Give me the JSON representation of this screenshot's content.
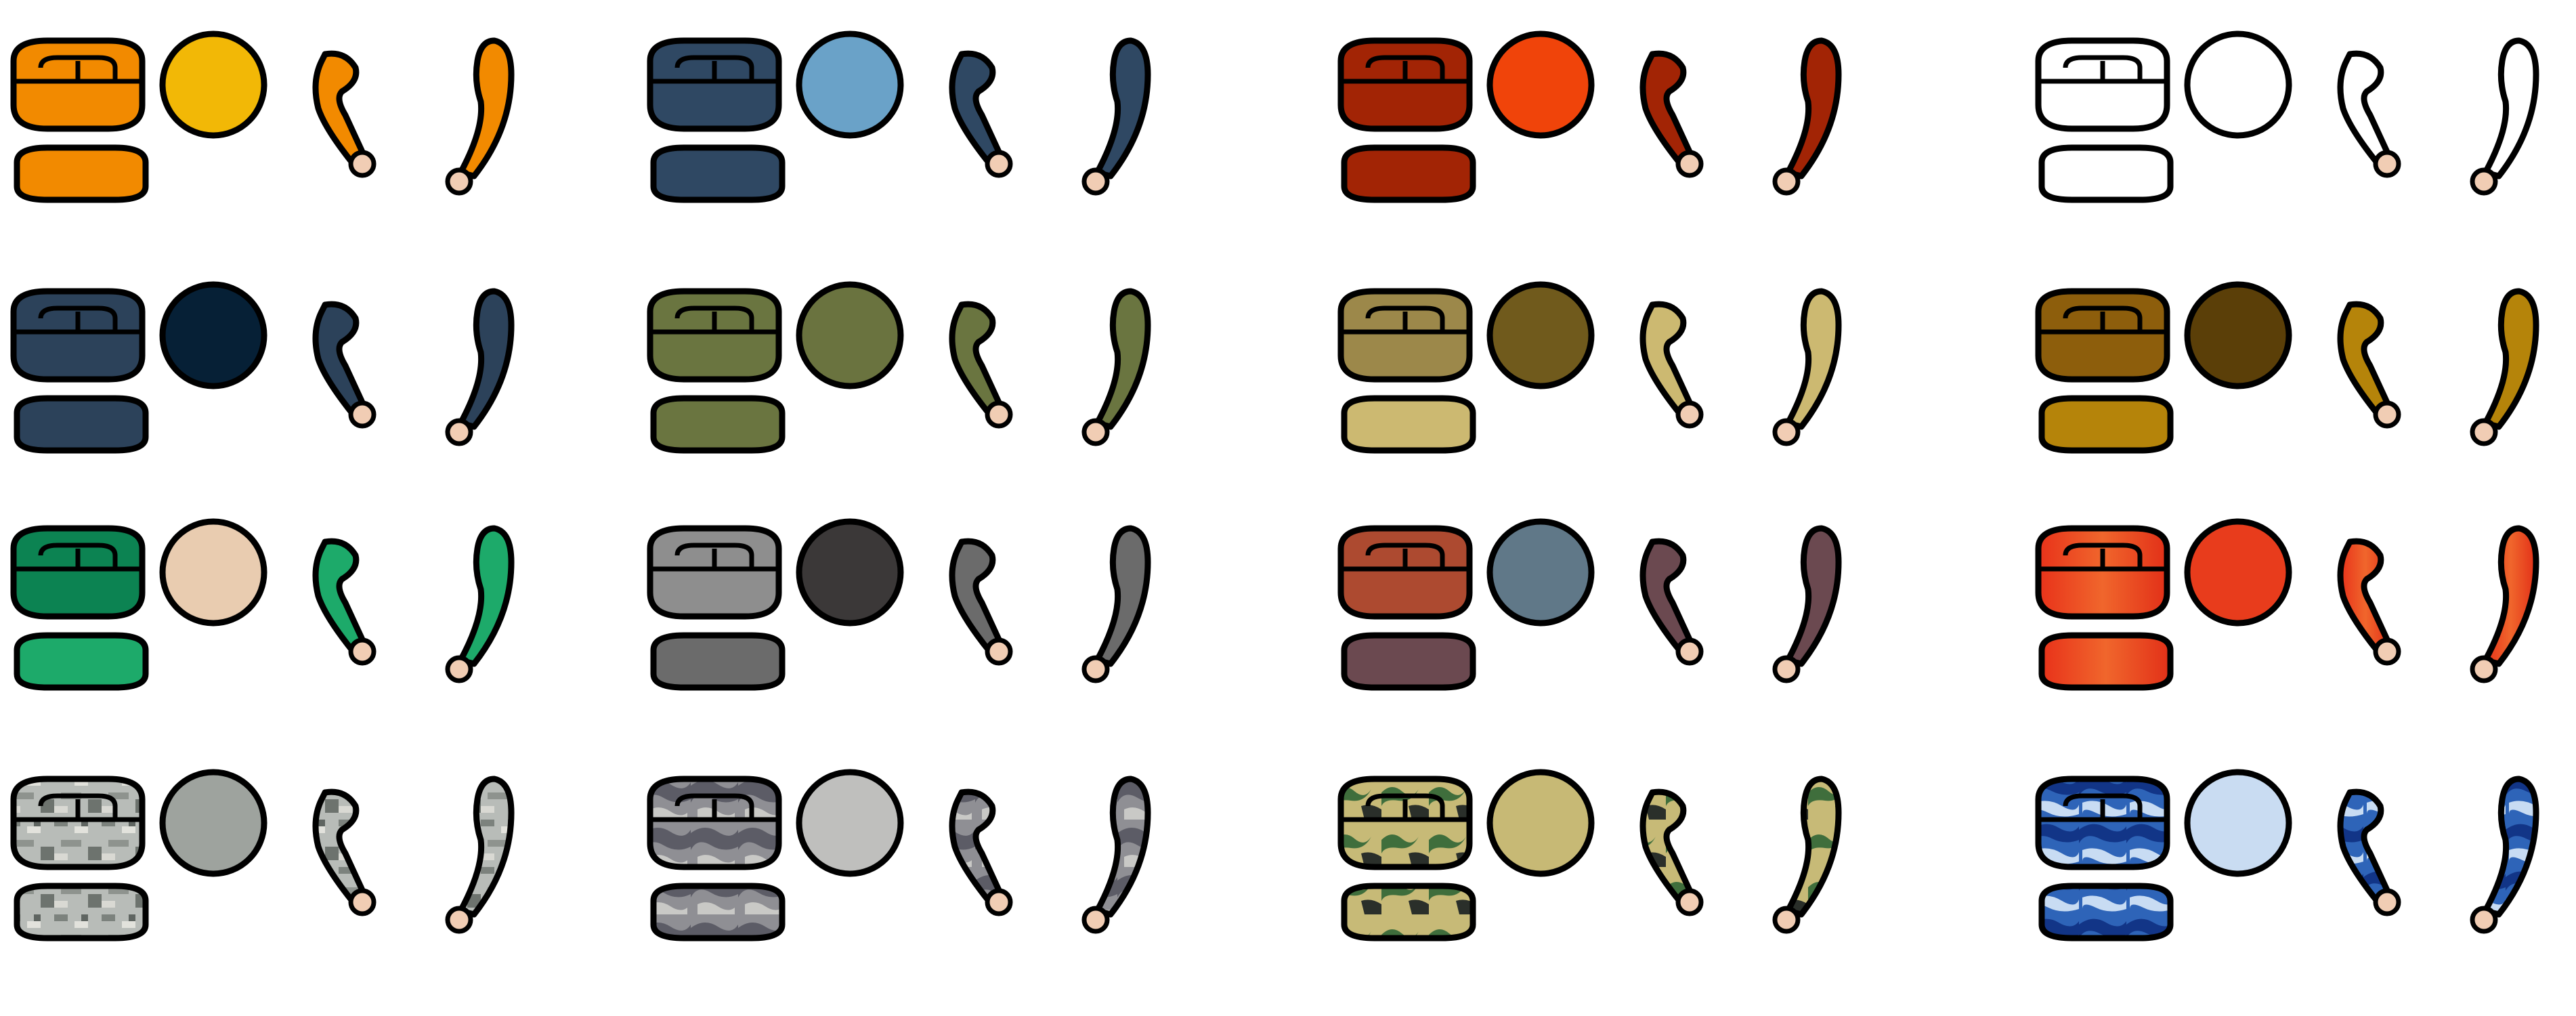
{
  "sheet": {
    "background": "#ffffff",
    "outline": "#000000",
    "hand_color": "#f1cdb4",
    "part_names": [
      "cap-front",
      "cap-back",
      "shoulder-pad",
      "short-arm",
      "long-arm"
    ],
    "variants": [
      {
        "name": "orange",
        "pattern": "solid",
        "body": "#f28a00",
        "shade": "#e07d00",
        "circle": "#f2b806"
      },
      {
        "name": "slate-blue",
        "pattern": "solid",
        "body": "#2f4863",
        "shade": "#263e58",
        "circle": "#6aa2c8"
      },
      {
        "name": "crimson",
        "pattern": "solid",
        "body": "#a22405",
        "shade": "#8f1e03",
        "circle": "#f0440a"
      },
      {
        "name": "white",
        "pattern": "solid",
        "body": "#ffffff",
        "shade": "#ffffff",
        "circle": "#ffffff"
      },
      {
        "name": "navy",
        "pattern": "solid",
        "body": "#2c425a",
        "shade": "#243a52",
        "circle": "#062036"
      },
      {
        "name": "olive",
        "pattern": "solid",
        "body": "#6a7540",
        "shade": "#5c6636",
        "circle": "#6a733f"
      },
      {
        "name": "sand",
        "pattern": "solid",
        "body": "#9c884a",
        "shade": "#8a7640",
        "circle": "#705a1c",
        "arm": "#ccb971",
        "pad": "#ccb971"
      },
      {
        "name": "bronze",
        "pattern": "solid",
        "body": "#8d5e0c",
        "shade": "#7c5208",
        "circle": "#5b3f08",
        "arm": "#b5840a",
        "pad": "#b5840a"
      },
      {
        "name": "green",
        "pattern": "solid",
        "body": "#0c8352",
        "shade": "#087246",
        "circle": "#e9ccb0",
        "arm": "#1daa6a",
        "pad": "#1daa6a"
      },
      {
        "name": "gray",
        "pattern": "solid",
        "body": "#8e8e8e",
        "shade": "#7d7d7d",
        "circle": "#3b3838",
        "arm": "#6b6b6b",
        "pad": "#6b6b6b"
      },
      {
        "name": "rust",
        "pattern": "solid",
        "body": "#ad4a30",
        "shade": "#9a3f28",
        "circle": "#607888",
        "arm": "#6b4950",
        "pad": "#6b4950"
      },
      {
        "name": "fire",
        "pattern": "gradient",
        "body": "#e8341a",
        "shade": "#f0652a",
        "circle": "#e83c1c"
      },
      {
        "name": "digital-camo",
        "pattern": "digital",
        "body": "#b4b8b4",
        "shade": "#7e847f",
        "circle": "#9ea39e"
      },
      {
        "name": "urban-camo",
        "pattern": "urban",
        "body": "#8d8d93",
        "shade": "#5d5d66",
        "circle": "#bfbfbd"
      },
      {
        "name": "woodland-camo",
        "pattern": "woodland",
        "body": "#c7b975",
        "shade": "#3e6e3b",
        "circle": "#c7b975"
      },
      {
        "name": "blue-camo",
        "pattern": "bluecamo",
        "body": "#2f63b7",
        "shade": "#12358a",
        "circle": "#c9dcf2"
      }
    ]
  }
}
